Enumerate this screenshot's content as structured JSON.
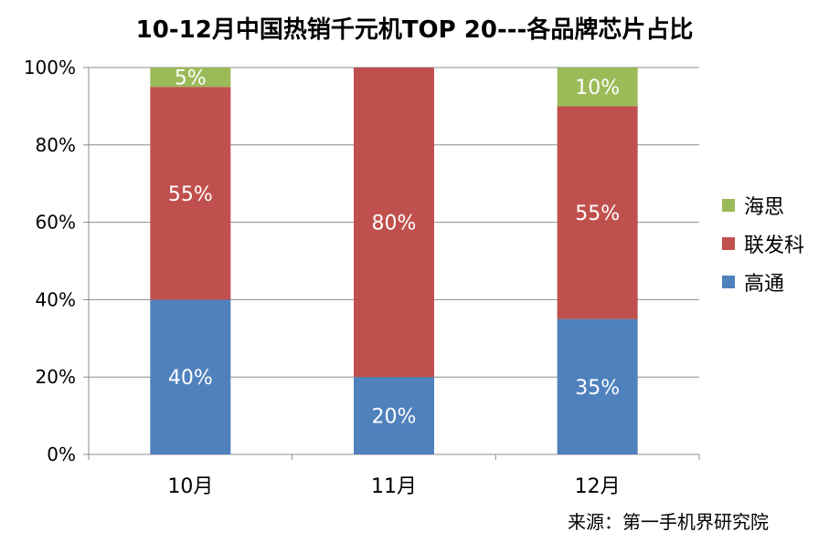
{
  "chart_data": {
    "type": "bar",
    "stacked": true,
    "title": "10-12月中国热销千元机TOP 20---各品牌芯片占比",
    "categories": [
      "10月",
      "11月",
      "12月"
    ],
    "series": [
      {
        "name": "高通",
        "values": [
          40,
          20,
          35
        ],
        "labels": [
          "40%",
          "20%",
          "35%"
        ],
        "color": "#4f81bd"
      },
      {
        "name": "联发科",
        "values": [
          55,
          80,
          55
        ],
        "labels": [
          "55%",
          "80%",
          "55%"
        ],
        "color": "#c0504d"
      },
      {
        "name": "海思",
        "values": [
          5,
          0,
          10
        ],
        "labels": [
          "5%",
          "",
          "10%"
        ],
        "color": "#9bbb59"
      }
    ],
    "y_ticks": [
      "0%",
      "20%",
      "40%",
      "60%",
      "80%",
      "100%"
    ],
    "ylim": [
      0,
      100
    ],
    "grid": true,
    "legend_position": "right"
  },
  "legend_order": [
    "海思",
    "联发科",
    "高通"
  ],
  "source_note": "来源：第一手机界研究院"
}
